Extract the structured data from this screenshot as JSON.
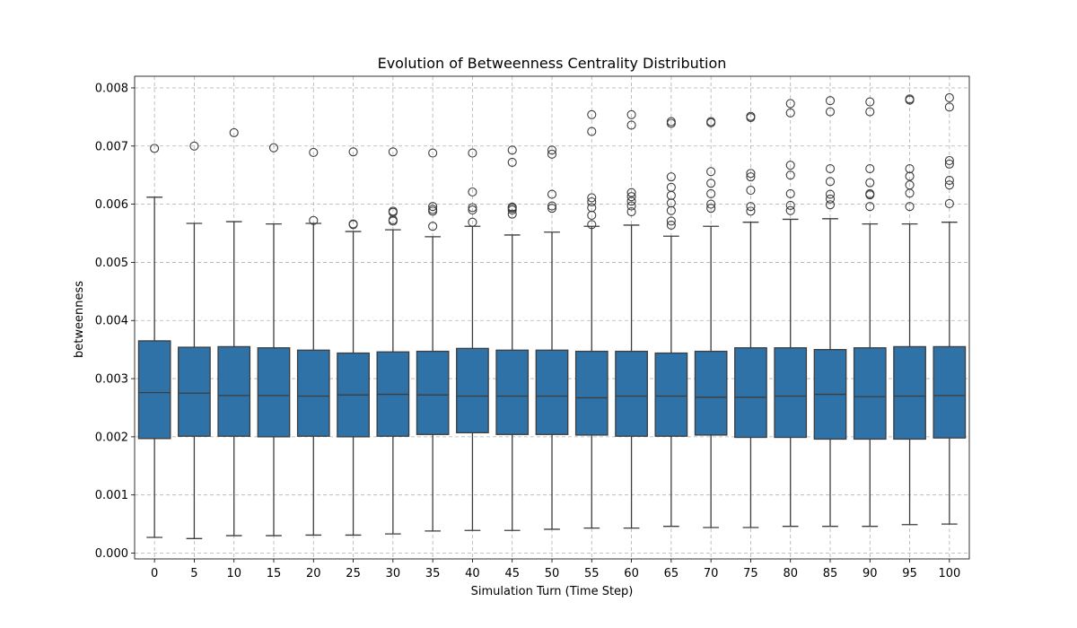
{
  "chart_data": {
    "type": "box",
    "title": "Evolution of Betweenness Centrality Distribution",
    "xlabel": "Simulation Turn (Time Step)",
    "ylabel": "betweenness",
    "ylim": [
      -0.0001,
      0.0082
    ],
    "yticks": [
      "0.000",
      "0.001",
      "0.002",
      "0.003",
      "0.004",
      "0.005",
      "0.006",
      "0.007",
      "0.008"
    ],
    "grid": true,
    "box_color": "#2e72a8",
    "categories": [
      "0",
      "5",
      "10",
      "15",
      "20",
      "25",
      "30",
      "35",
      "40",
      "45",
      "50",
      "55",
      "60",
      "65",
      "70",
      "75",
      "80",
      "85",
      "90",
      "95",
      "100"
    ],
    "boxes": [
      {
        "x": "0",
        "whisker_low": 0.00027,
        "q1": 0.00197,
        "median": 0.00276,
        "q3": 0.00365,
        "whisker_high": 0.00612,
        "outliers": [
          0.00696
        ]
      },
      {
        "x": "5",
        "whisker_low": 0.00025,
        "q1": 0.00201,
        "median": 0.00275,
        "q3": 0.00354,
        "whisker_high": 0.00567,
        "outliers": [
          0.007
        ]
      },
      {
        "x": "10",
        "whisker_low": 0.0003,
        "q1": 0.00201,
        "median": 0.00271,
        "q3": 0.00355,
        "whisker_high": 0.0057,
        "outliers": [
          0.00723
        ]
      },
      {
        "x": "15",
        "whisker_low": 0.0003,
        "q1": 0.002,
        "median": 0.00271,
        "q3": 0.00353,
        "whisker_high": 0.00566,
        "outliers": [
          0.00697
        ]
      },
      {
        "x": "20",
        "whisker_low": 0.00031,
        "q1": 0.00201,
        "median": 0.0027,
        "q3": 0.00349,
        "whisker_high": 0.00567,
        "outliers": [
          0.00689,
          0.00572
        ]
      },
      {
        "x": "25",
        "whisker_low": 0.00031,
        "q1": 0.002,
        "median": 0.00272,
        "q3": 0.00344,
        "whisker_high": 0.00553,
        "outliers": [
          0.0069,
          0.00566,
          0.00565
        ]
      },
      {
        "x": "30",
        "whisker_low": 0.00033,
        "q1": 0.00201,
        "median": 0.00273,
        "q3": 0.00346,
        "whisker_high": 0.00556,
        "outliers": [
          0.0069,
          0.00588,
          0.00586,
          0.00573,
          0.00571
        ]
      },
      {
        "x": "35",
        "whisker_low": 0.00038,
        "q1": 0.00204,
        "median": 0.00272,
        "q3": 0.00347,
        "whisker_high": 0.00544,
        "outliers": [
          0.00688,
          0.00596,
          0.00591,
          0.00588,
          0.00562
        ]
      },
      {
        "x": "40",
        "whisker_low": 0.00039,
        "q1": 0.00207,
        "median": 0.0027,
        "q3": 0.00352,
        "whisker_high": 0.00562,
        "outliers": [
          0.00688,
          0.00621,
          0.00594,
          0.0059,
          0.00569
        ]
      },
      {
        "x": "45",
        "whisker_low": 0.00039,
        "q1": 0.00204,
        "median": 0.0027,
        "q3": 0.00349,
        "whisker_high": 0.00547,
        "outliers": [
          0.00693,
          0.00672,
          0.00595,
          0.00593,
          0.0059,
          0.00583
        ]
      },
      {
        "x": "50",
        "whisker_low": 0.00041,
        "q1": 0.00204,
        "median": 0.0027,
        "q3": 0.00349,
        "whisker_high": 0.00552,
        "outliers": [
          0.00693,
          0.00686,
          0.00617,
          0.00597,
          0.00593
        ]
      },
      {
        "x": "55",
        "whisker_low": 0.00043,
        "q1": 0.00203,
        "median": 0.00267,
        "q3": 0.00347,
        "whisker_high": 0.00562,
        "outliers": [
          0.00754,
          0.00725,
          0.00611,
          0.00604,
          0.00594,
          0.00581,
          0.00565
        ]
      },
      {
        "x": "60",
        "whisker_low": 0.00043,
        "q1": 0.00201,
        "median": 0.0027,
        "q3": 0.00347,
        "whisker_high": 0.00564,
        "outliers": [
          0.00754,
          0.00736,
          0.0062,
          0.00613,
          0.00605,
          0.00597,
          0.00587
        ]
      },
      {
        "x": "65",
        "whisker_low": 0.00046,
        "q1": 0.00201,
        "median": 0.0027,
        "q3": 0.00344,
        "whisker_high": 0.00545,
        "outliers": [
          0.00742,
          0.00739,
          0.00647,
          0.00629,
          0.00615,
          0.00602,
          0.00589,
          0.00571,
          0.00564
        ]
      },
      {
        "x": "70",
        "whisker_low": 0.00044,
        "q1": 0.00203,
        "median": 0.00268,
        "q3": 0.00347,
        "whisker_high": 0.00562,
        "outliers": [
          0.00742,
          0.0074,
          0.00656,
          0.00636,
          0.00618,
          0.006,
          0.00593
        ]
      },
      {
        "x": "75",
        "whisker_low": 0.00044,
        "q1": 0.00199,
        "median": 0.00268,
        "q3": 0.00353,
        "whisker_high": 0.00569,
        "outliers": [
          0.00751,
          0.00749,
          0.00653,
          0.00647,
          0.00624,
          0.00596,
          0.00588
        ]
      },
      {
        "x": "80",
        "whisker_low": 0.00046,
        "q1": 0.00199,
        "median": 0.0027,
        "q3": 0.00353,
        "whisker_high": 0.00574,
        "outliers": [
          0.00773,
          0.00757,
          0.00667,
          0.0065,
          0.00618,
          0.00598,
          0.00589
        ]
      },
      {
        "x": "85",
        "whisker_low": 0.00046,
        "q1": 0.00196,
        "median": 0.00273,
        "q3": 0.0035,
        "whisker_high": 0.00575,
        "outliers": [
          0.00778,
          0.00759,
          0.00661,
          0.00639,
          0.00617,
          0.00609,
          0.00599
        ]
      },
      {
        "x": "90",
        "whisker_low": 0.00046,
        "q1": 0.00196,
        "median": 0.00269,
        "q3": 0.00353,
        "whisker_high": 0.00566,
        "outliers": [
          0.00776,
          0.00759,
          0.00661,
          0.00637,
          0.00618,
          0.00616,
          0.00596
        ]
      },
      {
        "x": "95",
        "whisker_low": 0.00049,
        "q1": 0.00196,
        "median": 0.0027,
        "q3": 0.00355,
        "whisker_high": 0.00566,
        "outliers": [
          0.00781,
          0.00779,
          0.00661,
          0.00648,
          0.00633,
          0.00619,
          0.00596
        ]
      },
      {
        "x": "100",
        "whisker_low": 0.0005,
        "q1": 0.00198,
        "median": 0.00271,
        "q3": 0.00355,
        "whisker_high": 0.00569,
        "outliers": [
          0.00783,
          0.00767,
          0.00675,
          0.00669,
          0.00641,
          0.00633,
          0.00601
        ]
      }
    ]
  }
}
